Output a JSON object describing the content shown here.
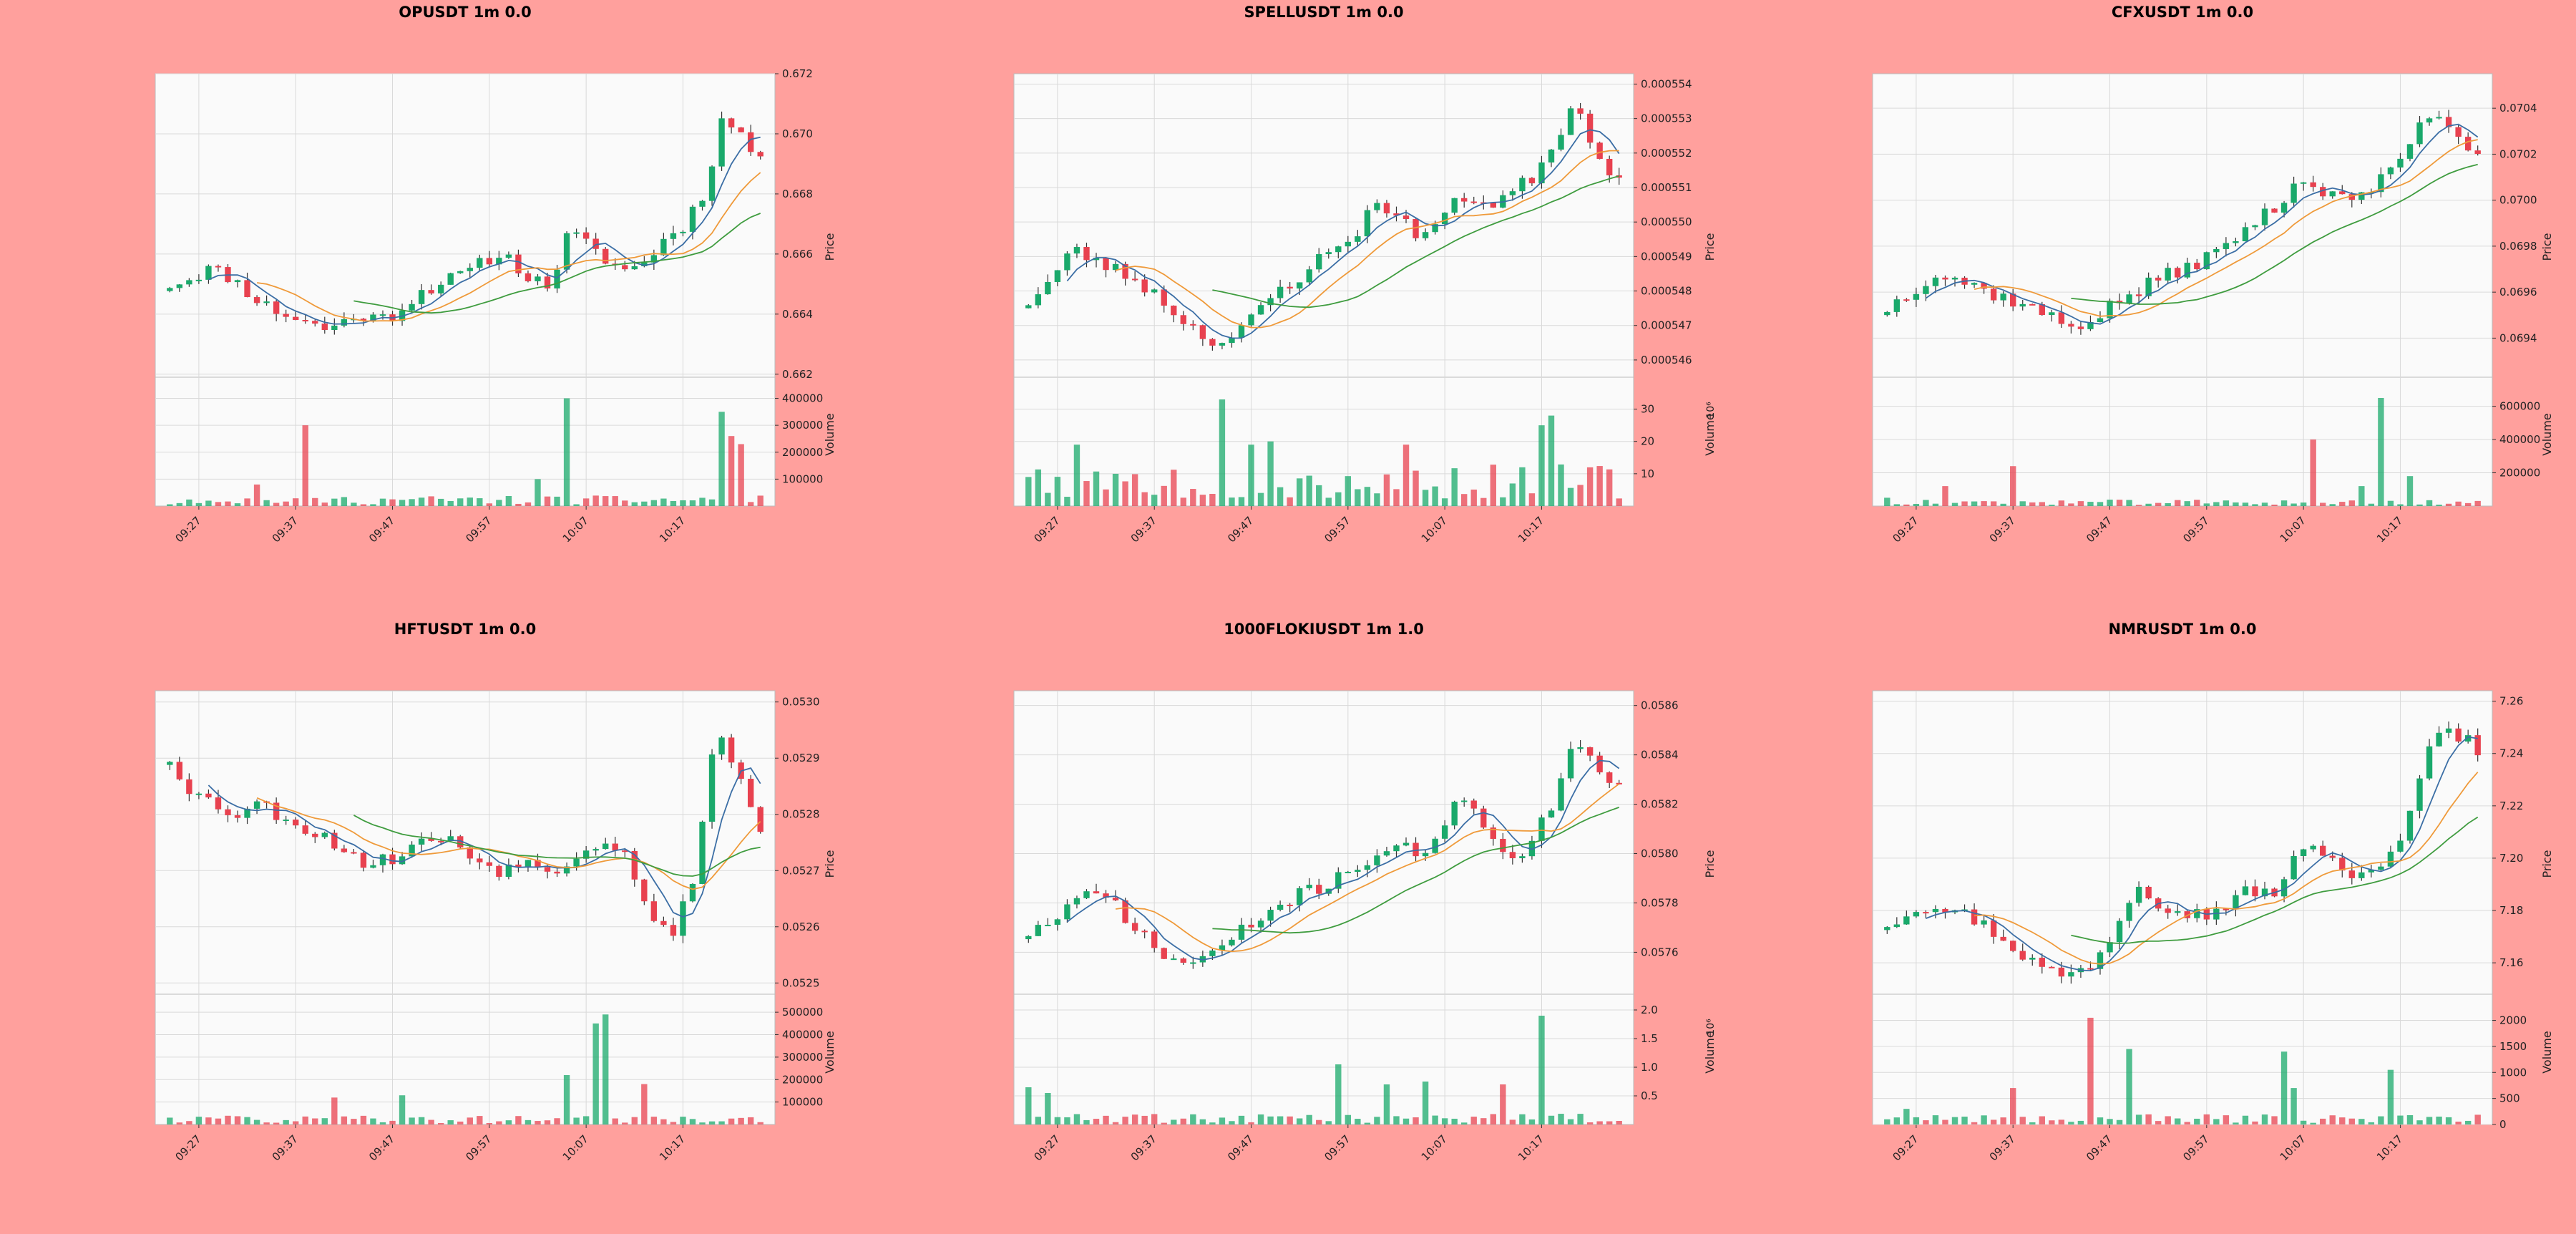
{
  "colors": {
    "background": "#ffa09d",
    "panel": "#fafafa",
    "grid": "#d9d9d9",
    "up": "#1aa96b",
    "down": "#e8414f",
    "ma_fast": "#3b6ea5",
    "ma_mid": "#ef9a3a",
    "ma_slow": "#3f9c3f"
  },
  "chart_data": [
    {
      "type": "candlestick",
      "title": "OPUSDT 1m 0.0",
      "ylabel": "Price",
      "vol_label": "Volume",
      "vol_exp": "",
      "ylim": [
        0.6619,
        0.672
      ],
      "price_ticks": [
        "0.662",
        "0.664",
        "0.666",
        "0.668",
        "0.670",
        "0.672"
      ],
      "vol_ylim": [
        0,
        420000
      ],
      "vol_ticks": [
        100000,
        200000,
        300000,
        400000
      ],
      "vol_tick_labels": [
        "100000",
        "200000",
        "300000",
        "400000"
      ],
      "x_ticks": [
        "09:27",
        "09:37",
        "09:47",
        "09:57",
        "10:07",
        "10:17"
      ],
      "anchors": [
        0.665,
        0.6652,
        0.6655,
        0.6653,
        0.6648,
        0.6643,
        0.664,
        0.6638,
        0.6635,
        0.6637,
        0.664,
        0.6638,
        0.6641,
        0.6647,
        0.665,
        0.6652,
        0.6655,
        0.666,
        0.6658,
        0.6651,
        0.665,
        0.6668,
        0.6662,
        0.6658,
        0.6654,
        0.6658,
        0.6665,
        0.667,
        0.668,
        0.6705,
        0.67,
        0.669
      ],
      "vol_spikes": [
        [
          4,
          20000
        ],
        [
          9,
          80000
        ],
        [
          14,
          300000
        ],
        [
          38,
          100000
        ],
        [
          41,
          400000
        ],
        [
          57,
          350000
        ],
        [
          58,
          260000
        ],
        [
          59,
          230000
        ]
      ],
      "vol_base": 30000,
      "seed": 11
    },
    {
      "type": "candlestick",
      "title": "SPELLUSDT 1m 0.0",
      "ylabel": "Price",
      "vol_label": "Volume",
      "vol_exp": "10⁶",
      "ylim": [
        0.0005455,
        0.0005543
      ],
      "price_ticks": [
        "0.000546",
        "0.000547",
        "0.000548",
        "0.000549",
        "0.000550",
        "0.000551",
        "0.000552",
        "0.000553",
        "0.000554"
      ],
      "vol_ylim": [
        0,
        35
      ],
      "vol_ticks": [
        10,
        20,
        30
      ],
      "vol_tick_labels": [
        "10",
        "20",
        "30"
      ],
      "x_ticks": [
        "09:27",
        "09:37",
        "09:47",
        "09:57",
        "10:07",
        "10:17"
      ],
      "anchors": [
        0.0005477,
        0.0005483,
        0.0005492,
        0.0005489,
        0.0005486,
        0.0005483,
        0.0005478,
        0.0005472,
        0.0005467,
        0.0005465,
        0.000547,
        0.0005478,
        0.0005482,
        0.0005488,
        0.0005492,
        0.0005497,
        0.0005507,
        0.00055,
        0.0005496,
        0.0005502,
        0.0005508,
        0.0005505,
        0.0005508,
        0.0005513,
        0.0005523,
        0.0005535,
        0.000552,
        0.0005512
      ],
      "vol_spikes": [
        [
          0,
          9
        ],
        [
          5,
          19
        ],
        [
          20,
          33
        ],
        [
          23,
          19
        ],
        [
          25,
          20
        ],
        [
          39,
          19
        ],
        [
          53,
          25
        ],
        [
          54,
          28
        ]
      ],
      "vol_base": 10,
      "seed": 23
    },
    {
      "type": "candlestick",
      "title": "CFXUSDT 1m 0.0",
      "ylabel": "Price",
      "vol_label": "Volume",
      "vol_exp": "",
      "ylim": [
        0.06923,
        0.07055
      ],
      "price_ticks": [
        "0.0694",
        "0.0696",
        "0.0698",
        "0.0700",
        "0.0702",
        "0.0704"
      ],
      "vol_ylim": [
        0,
        680000
      ],
      "vol_ticks": [
        200000,
        400000,
        600000
      ],
      "vol_tick_labels": [
        "200000",
        "400000",
        "600000"
      ],
      "x_ticks": [
        "09:27",
        "09:37",
        "09:47",
        "09:57",
        "10:07",
        "10:17"
      ],
      "anchors": [
        0.06953,
        0.0696,
        0.06968,
        0.06966,
        0.06962,
        0.06958,
        0.06955,
        0.0695,
        0.06945,
        0.06948,
        0.06955,
        0.0696,
        0.06966,
        0.0697,
        0.06975,
        0.0698,
        0.0699,
        0.06995,
        0.0701,
        0.07005,
        0.07,
        0.07003,
        0.0701,
        0.07025,
        0.0704,
        0.0703,
        0.0702
      ],
      "vol_spikes": [
        [
          0,
          50000
        ],
        [
          6,
          120000
        ],
        [
          13,
          240000
        ],
        [
          44,
          400000
        ],
        [
          49,
          120000
        ],
        [
          51,
          650000
        ],
        [
          54,
          180000
        ]
      ],
      "vol_base": 30000,
      "seed": 37
    },
    {
      "type": "candlestick",
      "title": "HFTUSDT 1m 0.0",
      "ylabel": "Price",
      "vol_label": "Volume",
      "vol_exp": "",
      "ylim": [
        0.05248,
        0.05302
      ],
      "price_ticks": [
        "0.0525",
        "0.0526",
        "0.0527",
        "0.0528",
        "0.0529",
        "0.0530"
      ],
      "vol_ylim": [
        0,
        510000
      ],
      "vol_ticks": [
        100000,
        200000,
        300000,
        400000,
        500000
      ],
      "vol_tick_labels": [
        "100000",
        "200000",
        "300000",
        "400000",
        "500000"
      ],
      "x_ticks": [
        "09:27",
        "09:37",
        "09:47",
        "09:57",
        "10:07",
        "10:17"
      ],
      "anchors": [
        0.0529,
        0.05284,
        0.05282,
        0.0528,
        0.05282,
        0.0528,
        0.05278,
        0.05276,
        0.05274,
        0.05271,
        0.05272,
        0.05274,
        0.05276,
        0.05275,
        0.05272,
        0.0527,
        0.05272,
        0.0527,
        0.05271,
        0.05274,
        0.05276,
        0.05272,
        0.05262,
        0.05258,
        0.0527,
        0.05296,
        0.05287,
        0.05277
      ],
      "vol_spikes": [
        [
          17,
          120000
        ],
        [
          24,
          130000
        ],
        [
          41,
          220000
        ],
        [
          44,
          450000
        ],
        [
          45,
          490000
        ],
        [
          49,
          180000
        ]
      ],
      "vol_base": 30000,
      "seed": 53
    },
    {
      "type": "candlestick",
      "title": "1000FLOKIUSDT 1m 1.0",
      "ylabel": "Price",
      "vol_label": "Volume",
      "vol_exp": "10⁶",
      "ylim": [
        0.05743,
        0.05866
      ],
      "price_ticks": [
        "0.0576",
        "0.0578",
        "0.0580",
        "0.0582",
        "0.0584",
        "0.0586"
      ],
      "vol_ylim": [
        0,
        2.0
      ],
      "vol_ticks": [
        0.5,
        1.0,
        1.5,
        2.0
      ],
      "vol_tick_labels": [
        "0.5",
        "1.0",
        "1.5",
        "2.0"
      ],
      "x_ticks": [
        "09:27",
        "09:37",
        "09:47",
        "09:57",
        "10:07",
        "10:17"
      ],
      "anchors": [
        0.05768,
        0.05772,
        0.0578,
        0.05783,
        0.0578,
        0.05768,
        0.0576,
        0.05755,
        0.05758,
        0.05763,
        0.0577,
        0.05776,
        0.05782,
        0.05785,
        0.0579,
        0.05795,
        0.058,
        0.05802,
        0.058,
        0.05812,
        0.05825,
        0.0581,
        0.05795,
        0.05805,
        0.0582,
        0.05845,
        0.05835,
        0.05828
      ],
      "vol_spikes": [
        [
          0,
          0.65
        ],
        [
          2,
          0.55
        ],
        [
          32,
          1.05
        ],
        [
          37,
          0.7
        ],
        [
          41,
          0.75
        ],
        [
          49,
          0.7
        ],
        [
          53,
          1.9
        ]
      ],
      "vol_base": 0.15,
      "seed": 71
    },
    {
      "type": "candlestick",
      "title": "NMRUSDT 1m 0.0",
      "ylabel": "Price",
      "vol_label": "Volume",
      "vol_exp": "",
      "ylim": [
        7.148,
        7.264
      ],
      "price_ticks": [
        "7.16",
        "7.18",
        "7.20",
        "7.22",
        "7.24",
        "7.26"
      ],
      "vol_ylim": [
        0,
        2200
      ],
      "vol_ticks": [
        0,
        500,
        1000,
        1500,
        2000
      ],
      "vol_tick_labels": [
        "0",
        "500",
        "1000",
        "1500",
        "2000"
      ],
      "x_ticks": [
        "09:27",
        "09:37",
        "09:47",
        "09:57",
        "10:07",
        "10:17"
      ],
      "anchors": [
        7.175,
        7.18,
        7.183,
        7.18,
        7.176,
        7.17,
        7.163,
        7.157,
        7.155,
        7.16,
        7.172,
        7.192,
        7.183,
        7.18,
        7.178,
        7.183,
        7.188,
        7.186,
        7.2,
        7.205,
        7.196,
        7.192,
        7.198,
        7.215,
        7.25,
        7.248,
        7.242
      ],
      "vol_spikes": [
        [
          0,
          100
        ],
        [
          2,
          300
        ],
        [
          13,
          700
        ],
        [
          21,
          2050
        ],
        [
          25,
          1450
        ],
        [
          41,
          1400
        ],
        [
          42,
          700
        ],
        [
          52,
          1050
        ]
      ],
      "vol_base": 150,
      "seed": 97
    }
  ]
}
